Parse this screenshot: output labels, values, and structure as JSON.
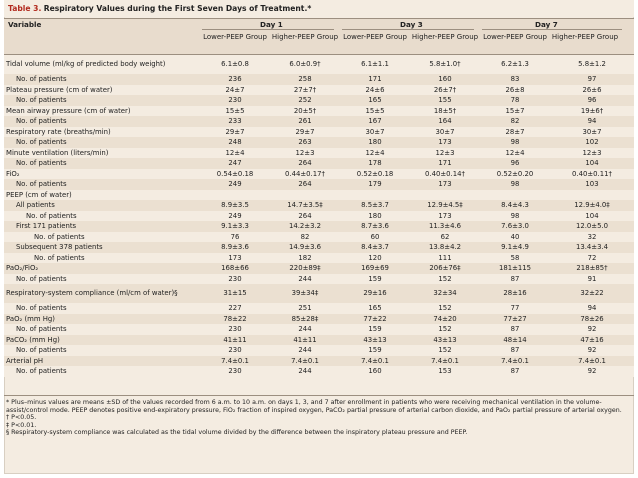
{
  "table": {
    "label": "Table 3.",
    "caption": "Respiratory Values during the First Seven Days of Treatment.*"
  },
  "header": {
    "variable": "Variable",
    "days": [
      "Day 1",
      "Day 3",
      "Day 7"
    ],
    "groups": [
      "Lower-PEEP Group",
      "Higher-PEEP Group",
      "Lower-PEEP Group",
      "Higher-PEEP Group",
      "Lower-PEEP Group",
      "Higher-PEEP Group"
    ]
  },
  "rows": [
    {
      "label": "Tidal volume (ml/kg of predicted body weight)",
      "indent": 0,
      "tall": true,
      "values": [
        "6.1±0.8",
        "6.0±0.9†",
        "6.1±1.1",
        "5.8±1.0†",
        "6.2±1.3",
        "5.8±1.2"
      ]
    },
    {
      "label": "No. of patients",
      "indent": 1,
      "values": [
        "236",
        "258",
        "171",
        "160",
        "83",
        "97"
      ]
    },
    {
      "label": "Plateau pressure (cm of water)",
      "indent": 0,
      "values": [
        "24±7",
        "27±7†",
        "24±6",
        "26±7†",
        "26±8",
        "26±6"
      ]
    },
    {
      "label": "No. of patients",
      "indent": 1,
      "values": [
        "230",
        "252",
        "165",
        "155",
        "78",
        "96"
      ]
    },
    {
      "label": "Mean airway pressure (cm of water)",
      "indent": 0,
      "values": [
        "15±5",
        "20±5†",
        "15±5",
        "18±5†",
        "15±7",
        "19±6†"
      ]
    },
    {
      "label": "No. of patients",
      "indent": 1,
      "values": [
        "233",
        "261",
        "167",
        "164",
        "82",
        "94"
      ]
    },
    {
      "label": "Respiratory rate (breaths/min)",
      "indent": 0,
      "values": [
        "29±7",
        "29±7",
        "30±7",
        "30±7",
        "28±7",
        "30±7"
      ]
    },
    {
      "label": "No. of patients",
      "indent": 1,
      "values": [
        "248",
        "263",
        "180",
        "173",
        "98",
        "102"
      ]
    },
    {
      "label": "Minute ventilation (liters/min)",
      "indent": 0,
      "values": [
        "12±4",
        "12±3",
        "12±4",
        "12±3",
        "12±4",
        "12±3"
      ]
    },
    {
      "label": "No. of patients",
      "indent": 1,
      "values": [
        "247",
        "264",
        "178",
        "171",
        "96",
        "104"
      ]
    },
    {
      "label": "FiO₂",
      "indent": 0,
      "values": [
        "0.54±0.18",
        "0.44±0.17†",
        "0.52±0.18",
        "0.40±0.14†",
        "0.52±0.20",
        "0.40±0.11†"
      ]
    },
    {
      "label": "No. of patients",
      "indent": 1,
      "values": [
        "249",
        "264",
        "179",
        "173",
        "98",
        "103"
      ]
    },
    {
      "label": "PEEP (cm of water)",
      "indent": 0,
      "values": [
        "",
        "",
        "",
        "",
        "",
        ""
      ]
    },
    {
      "label": "All patients",
      "indent": 1,
      "values": [
        "8.9±3.5",
        "14.7±3.5‡",
        "8.5±3.7",
        "12.9±4.5‡",
        "8.4±4.3",
        "12.9±4.0‡"
      ]
    },
    {
      "label": "No. of patients",
      "indent": 2,
      "values": [
        "249",
        "264",
        "180",
        "173",
        "98",
        "104"
      ]
    },
    {
      "label": "First 171 patients",
      "indent": 1,
      "values": [
        "9.1±3.3",
        "14.2±3.2",
        "8.7±3.6",
        "11.3±4.6",
        "7.6±3.0",
        "12.0±5.0"
      ]
    },
    {
      "label": "No. of patients",
      "indent": 3,
      "values": [
        "76",
        "82",
        "60",
        "62",
        "40",
        "32"
      ]
    },
    {
      "label": "Subsequent 378 patients",
      "indent": 1,
      "values": [
        "8.9±3.6",
        "14.9±3.6",
        "8.4±3.7",
        "13.8±4.2",
        "9.1±4.9",
        "13.4±3.4"
      ]
    },
    {
      "label": "No. of patients",
      "indent": 3,
      "values": [
        "173",
        "182",
        "120",
        "111",
        "58",
        "72"
      ]
    },
    {
      "label": "PaO₂/FiO₂",
      "indent": 0,
      "values": [
        "168±66",
        "220±89‡",
        "169±69",
        "206±76‡",
        "181±115",
        "218±85†"
      ]
    },
    {
      "label": "No. of patients",
      "indent": 1,
      "values": [
        "230",
        "244",
        "159",
        "152",
        "87",
        "91"
      ]
    },
    {
      "label": "Respiratory-system compliance (ml/cm of water)§",
      "indent": 0,
      "tall": true,
      "values": [
        "31±15",
        "39±34‡",
        "29±16",
        "32±34",
        "28±16",
        "32±22"
      ]
    },
    {
      "label": "No. of patients",
      "indent": 1,
      "values": [
        "227",
        "251",
        "165",
        "152",
        "77",
        "94"
      ]
    },
    {
      "label": "PaO₂ (mm Hg)",
      "indent": 0,
      "values": [
        "78±22",
        "85±28‡",
        "77±22",
        "74±20",
        "77±27",
        "78±26"
      ]
    },
    {
      "label": "No. of patients",
      "indent": 1,
      "values": [
        "230",
        "244",
        "159",
        "152",
        "87",
        "92"
      ]
    },
    {
      "label": "PaCO₂ (mm Hg)",
      "indent": 0,
      "values": [
        "41±11",
        "41±11",
        "43±13",
        "43±13",
        "48±14",
        "47±16"
      ]
    },
    {
      "label": "No. of patients",
      "indent": 1,
      "values": [
        "230",
        "244",
        "159",
        "152",
        "87",
        "92"
      ]
    },
    {
      "label": "Arterial pH",
      "indent": 0,
      "values": [
        "7.4±0.1",
        "7.4±0.1",
        "7.4±0.1",
        "7.4±0.1",
        "7.4±0.1",
        "7.4±0.1"
      ]
    },
    {
      "label": "No. of patients",
      "indent": 1,
      "values": [
        "230",
        "244",
        "160",
        "153",
        "87",
        "92"
      ]
    }
  ],
  "footnotes": [
    "* Plus–minus values are means ±SD of the values recorded from 6 a.m. to 10 a.m. on days 1, 3, and 7 after enrollment in patients who were receiving mechanical ventilation in the volume-assist/control mode. PEEP denotes positive end-expiratory pressure, FiO₂ fraction of inspired oxygen, PaCO₂ partial pressure of arterial carbon dioxide, and PaO₂ partial pressure of arterial oxygen.",
    "† P<0.05.",
    "‡ P<0.01.",
    "§ Respiratory-system compliance was calculated as the tidal volume divided by the difference between the inspiratory plateau pressure and PEEP."
  ]
}
